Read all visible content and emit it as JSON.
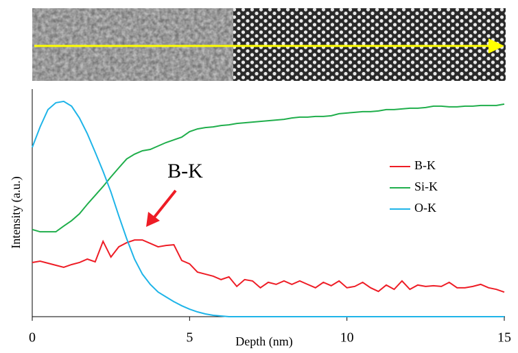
{
  "chart_data": {
    "type": "line",
    "xlabel": "Depth (nm)",
    "ylabel": "Intensity (a.u.)",
    "annotation": "B-K",
    "xlim": [
      0,
      15
    ],
    "xticks": [
      0,
      5,
      10,
      15
    ],
    "ylim": [
      0,
      100
    ],
    "legend": "right",
    "x": [
      0,
      0.25,
      0.5,
      0.75,
      1,
      1.25,
      1.5,
      1.75,
      2,
      2.25,
      2.5,
      2.75,
      3,
      3.25,
      3.5,
      3.75,
      4,
      4.25,
      4.5,
      4.75,
      5,
      5.25,
      5.5,
      5.75,
      6,
      6.25,
      6.5,
      6.75,
      7,
      7.25,
      7.5,
      7.75,
      8,
      8.25,
      8.5,
      8.75,
      9,
      9.25,
      9.5,
      9.75,
      10,
      10.25,
      10.5,
      10.75,
      11,
      11.25,
      11.5,
      11.75,
      12,
      12.25,
      12.5,
      12.75,
      13,
      13.25,
      13.5,
      13.75,
      14,
      14.25,
      14.5,
      14.75,
      15
    ],
    "series": [
      {
        "name": "B-K",
        "color": "#ee1c25",
        "values": [
          23.8,
          24.4,
          23.5,
          22.6,
          21.7,
          22.9,
          23.8,
          25.3,
          24.1,
          33.1,
          26.2,
          30.7,
          32.5,
          33.7,
          33.7,
          32.2,
          30.7,
          31.3,
          31.6,
          24.7,
          23.2,
          19.6,
          18.7,
          17.8,
          16.3,
          17.5,
          13.3,
          16.3,
          15.7,
          12.7,
          15.1,
          14.2,
          15.7,
          14.2,
          15.7,
          14.2,
          12.7,
          15.1,
          13.6,
          15.7,
          12.7,
          13.3,
          15.1,
          12.7,
          11.1,
          13.9,
          12.0,
          15.7,
          12.0,
          13.9,
          13.3,
          13.6,
          13.3,
          15.1,
          12.7,
          12.7,
          13.3,
          14.2,
          12.7,
          12.0,
          10.8
        ]
      },
      {
        "name": "Si-K",
        "color": "#1fae4b",
        "values": [
          38.3,
          37.3,
          37.3,
          37.3,
          39.8,
          42.2,
          45.2,
          49.4,
          53.3,
          57.2,
          61.4,
          65.4,
          69.3,
          71.4,
          72.9,
          73.5,
          75.0,
          76.5,
          77.7,
          78.9,
          81.3,
          82.5,
          83.1,
          83.4,
          84.0,
          84.3,
          84.9,
          85.2,
          85.5,
          85.8,
          86.1,
          86.4,
          86.7,
          87.3,
          87.7,
          87.7,
          88.0,
          88.0,
          88.3,
          89.2,
          89.5,
          89.8,
          90.1,
          90.1,
          90.4,
          91.0,
          91.0,
          91.3,
          91.6,
          91.6,
          91.9,
          92.5,
          92.5,
          92.2,
          92.2,
          92.5,
          92.5,
          92.8,
          92.8,
          92.8,
          93.4
        ]
      },
      {
        "name": "O-K",
        "color": "#1eb4e8",
        "values": [
          74.4,
          83.4,
          91.0,
          94.0,
          94.6,
          92.5,
          87.3,
          80.4,
          72.3,
          63.9,
          54.8,
          44.3,
          34.3,
          25.3,
          18.7,
          14.2,
          10.8,
          8.7,
          6.6,
          4.8,
          3.3,
          2.1,
          1.2,
          0.6,
          0.3,
          0,
          0,
          0,
          0,
          0,
          0,
          0,
          0,
          0,
          0,
          0,
          0,
          0,
          0,
          0,
          0,
          0,
          0,
          0,
          0,
          0,
          0,
          0,
          0,
          0,
          0,
          0,
          0,
          0,
          0,
          0,
          0,
          0,
          0,
          0,
          0
        ]
      }
    ]
  }
}
